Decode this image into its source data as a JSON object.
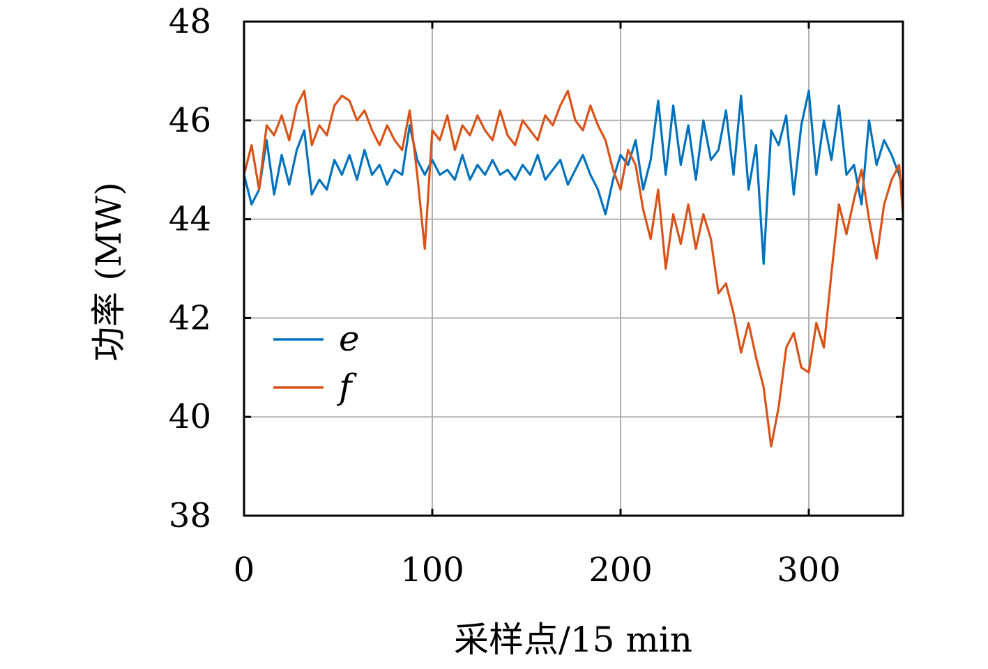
{
  "chart_data": {
    "type": "line",
    "xlabel": "采样点/15 min",
    "ylabel": "功率 (MW)",
    "xlim": [
      0,
      350
    ],
    "ylim": [
      38,
      48
    ],
    "xticks": [
      0,
      100,
      200,
      300
    ],
    "yticks": [
      38,
      40,
      42,
      44,
      46,
      48
    ],
    "grid": true,
    "legend": "left",
    "series": [
      {
        "name": "e",
        "color": "#0072BD",
        "x": [
          0,
          4,
          8,
          12,
          16,
          20,
          24,
          28,
          32,
          36,
          40,
          44,
          48,
          52,
          56,
          60,
          64,
          68,
          72,
          76,
          80,
          84,
          88,
          92,
          96,
          100,
          104,
          108,
          112,
          116,
          120,
          124,
          128,
          132,
          136,
          140,
          144,
          148,
          152,
          156,
          160,
          164,
          168,
          172,
          176,
          180,
          184,
          188,
          192,
          196,
          200,
          204,
          208,
          212,
          216,
          220,
          224,
          228,
          232,
          236,
          240,
          244,
          248,
          252,
          256,
          260,
          264,
          268,
          272,
          276,
          280,
          284,
          288,
          292,
          296,
          300,
          304,
          308,
          312,
          316,
          320,
          324,
          328,
          332,
          336,
          340,
          344,
          348,
          350
        ],
        "y": [
          44.9,
          44.3,
          44.6,
          45.6,
          44.5,
          45.3,
          44.7,
          45.4,
          45.8,
          44.5,
          44.8,
          44.6,
          45.2,
          44.9,
          45.3,
          44.8,
          45.4,
          44.9,
          45.1,
          44.7,
          45.0,
          44.9,
          45.9,
          45.2,
          44.9,
          45.2,
          44.9,
          45.0,
          44.8,
          45.3,
          44.8,
          45.1,
          44.9,
          45.2,
          44.9,
          45.0,
          44.8,
          45.1,
          44.9,
          45.3,
          44.8,
          45.0,
          45.2,
          44.7,
          45.0,
          45.3,
          44.9,
          44.6,
          44.1,
          44.8,
          45.3,
          45.1,
          45.6,
          44.6,
          45.2,
          46.4,
          44.9,
          46.3,
          45.1,
          45.9,
          44.8,
          46.0,
          45.2,
          45.4,
          46.2,
          44.9,
          46.5,
          44.6,
          45.5,
          43.1,
          45.8,
          45.5,
          46.1,
          44.5,
          45.9,
          46.6,
          44.9,
          46.0,
          45.2,
          46.3,
          44.9,
          45.1,
          44.3,
          46.0,
          45.1,
          45.6,
          45.3,
          44.9,
          44.6
        ]
      },
      {
        "name": "f",
        "color": "#D95319",
        "x": [
          0,
          4,
          8,
          12,
          16,
          20,
          24,
          28,
          32,
          36,
          40,
          44,
          48,
          52,
          56,
          60,
          64,
          68,
          72,
          76,
          80,
          84,
          88,
          92,
          96,
          100,
          104,
          108,
          112,
          116,
          120,
          124,
          128,
          132,
          136,
          140,
          144,
          148,
          152,
          156,
          160,
          164,
          168,
          172,
          176,
          180,
          184,
          188,
          192,
          196,
          200,
          204,
          208,
          212,
          216,
          220,
          224,
          228,
          232,
          236,
          240,
          244,
          248,
          252,
          256,
          260,
          264,
          268,
          272,
          276,
          280,
          284,
          288,
          292,
          296,
          300,
          304,
          308,
          312,
          316,
          320,
          324,
          328,
          332,
          336,
          340,
          344,
          348,
          350
        ],
        "y": [
          44.9,
          45.5,
          44.6,
          45.9,
          45.7,
          46.1,
          45.6,
          46.3,
          46.6,
          45.5,
          45.9,
          45.7,
          46.3,
          46.5,
          46.4,
          46.0,
          46.2,
          45.8,
          45.5,
          45.9,
          45.6,
          45.4,
          46.2,
          44.9,
          43.4,
          45.8,
          45.6,
          46.1,
          45.4,
          45.9,
          45.7,
          46.1,
          45.8,
          45.6,
          46.2,
          45.7,
          45.5,
          46.0,
          45.8,
          45.6,
          46.1,
          45.9,
          46.3,
          46.6,
          46.0,
          45.8,
          46.3,
          45.9,
          45.6,
          45.0,
          44.6,
          45.4,
          45.1,
          44.2,
          43.6,
          44.6,
          43.0,
          44.1,
          43.5,
          44.3,
          43.4,
          44.1,
          43.6,
          42.5,
          42.7,
          42.1,
          41.3,
          41.9,
          41.2,
          40.6,
          39.4,
          40.2,
          41.4,
          41.7,
          41.0,
          40.9,
          41.9,
          41.4,
          42.9,
          44.3,
          43.7,
          44.4,
          45.0,
          44.0,
          43.2,
          44.3,
          44.8,
          45.1,
          44.1
        ]
      }
    ]
  }
}
